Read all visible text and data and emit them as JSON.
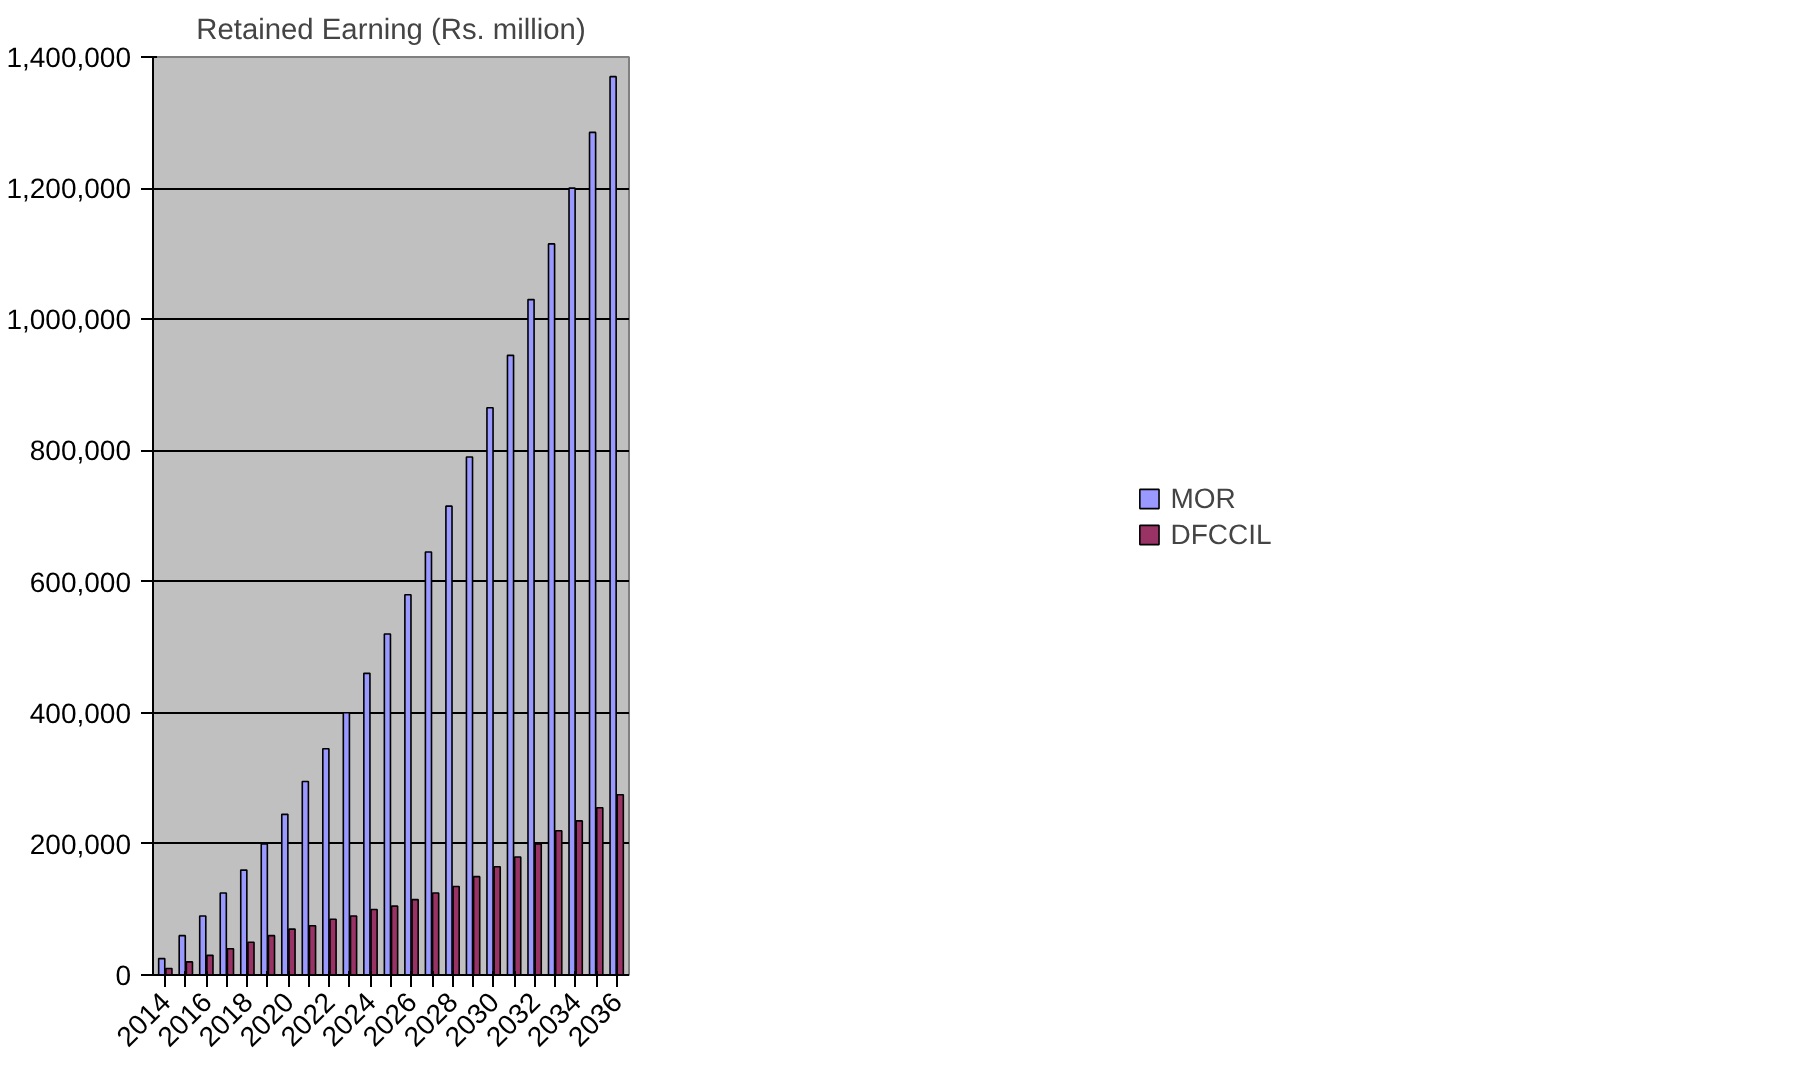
{
  "chart_data": {
    "type": "bar",
    "title": "Retained Earning (Rs. million)",
    "categories": [
      "2014",
      null,
      "2016",
      null,
      "2018",
      null,
      "2020",
      null,
      "2022",
      null,
      "2024",
      null,
      "2026",
      null,
      "2028",
      null,
      "2030",
      null,
      "2032",
      null,
      "2034",
      null,
      "2036"
    ],
    "series": [
      {
        "name": "MOR",
        "color": "#9999ff",
        "values": [
          25000,
          60000,
          90000,
          125000,
          160000,
          200000,
          245000,
          295000,
          345000,
          400000,
          460000,
          520000,
          580000,
          645000,
          715000,
          790000,
          865000,
          945000,
          1030000,
          1115000,
          1200000,
          1285000,
          1370000
        ]
      },
      {
        "name": "DFCCIL",
        "color": "#993366",
        "values": [
          10000,
          20000,
          30000,
          40000,
          50000,
          60000,
          70000,
          75000,
          85000,
          90000,
          100000,
          105000,
          115000,
          125000,
          135000,
          150000,
          165000,
          180000,
          200000,
          220000,
          235000,
          255000,
          275000
        ]
      }
    ],
    "ylim": [
      0,
      1400000
    ],
    "yticks": [
      0,
      {
        "value": 200000,
        "label": "200,000"
      },
      {
        "value": 400000,
        "label": "400,000"
      },
      {
        "value": 600000,
        "label": "600,000"
      },
      {
        "value": 800000,
        "label": "800,000"
      },
      {
        "value": 1000000,
        "label": "1,000,000"
      },
      {
        "value": 1200000,
        "label": "1,200,000"
      },
      {
        "value": 1400000,
        "label": "1,400,000"
      }
    ],
    "grid": "y",
    "legend": "right"
  }
}
